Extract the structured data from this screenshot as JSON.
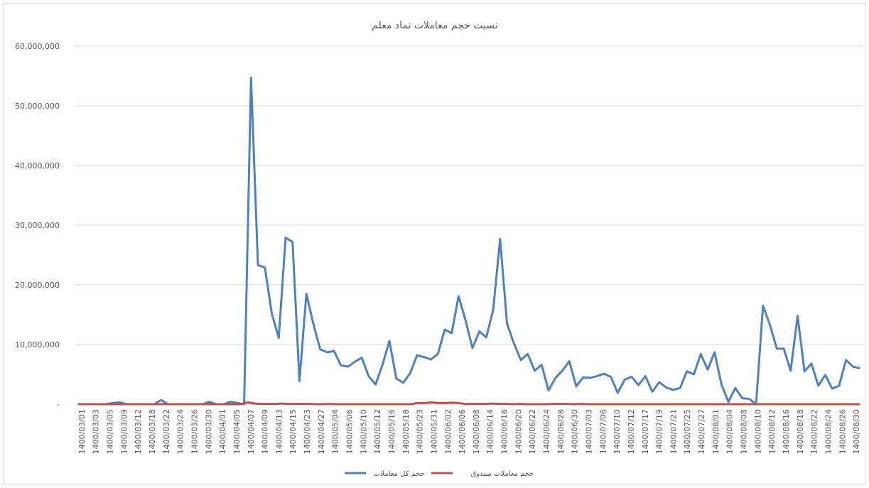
{
  "chart_data": {
    "type": "line",
    "title": "نسبت حجم معاملات نماد معلم",
    "xlabel": "",
    "ylabel": "",
    "ylim": [
      0,
      60000000
    ],
    "y_ticks": [
      "-",
      "10,000,000",
      "20,000,000",
      "30,000,000",
      "40,000,000",
      "50,000,000",
      "60,000,000"
    ],
    "y_tick_values": [
      0,
      10000000,
      20000000,
      30000000,
      40000000,
      50000000,
      60000000
    ],
    "grid": "horizontal",
    "legend_position": "bottom",
    "x_labels": [
      "1400/03/01",
      "1400/03/03",
      "1400/03/05",
      "1400/03/09",
      "1400/03/12",
      "1400/03/18",
      "1400/03/22",
      "1400/03/24",
      "1400/03/26",
      "1400/03/30",
      "1400/04/01",
      "1400/04/05",
      "1400/04/07",
      "1400/04/09",
      "1400/04/13",
      "1400/04/15",
      "1400/04/23",
      "1400/04/27",
      "1400/05/04",
      "1400/05/06",
      "1400/05/10",
      "1400/05/12",
      "1400/05/16",
      "1400/05/18",
      "1400/05/23",
      "1400/05/31",
      "1400/06/02",
      "1400/06/06",
      "1400/06/08",
      "1400/06/14",
      "1400/06/16",
      "1400/06/20",
      "1400/06/22",
      "1400/06/24",
      "1400/06/28",
      "1400/06/30",
      "1400/07/03",
      "1400/07/06",
      "1400/07/10",
      "1400/07/12",
      "1400/07/17",
      "1400/07/19",
      "1400/07/21",
      "1400/07/25",
      "1400/07/27",
      "1400/08/01",
      "1400/08/04",
      "1400/08/08",
      "1400/08/10",
      "1400/08/12",
      "1400/08/16",
      "1400/08/18",
      "1400/08/22",
      "1400/08/24",
      "1400/08/26",
      "1400/08/30"
    ],
    "series": [
      {
        "name": "حجم کل معاملات",
        "color": "#4f81bd",
        "values": [
          0,
          0,
          0,
          0,
          0,
          200000,
          300000,
          0,
          0,
          0,
          0,
          0,
          700000,
          0,
          0,
          0,
          0,
          0,
          0,
          400000,
          0,
          0,
          400000,
          200000,
          0,
          54700000,
          23300000,
          22900000,
          15200000,
          11100000,
          27900000,
          27200000,
          3900000,
          18500000,
          13500000,
          9200000,
          8700000,
          8900000,
          6500000,
          6300000,
          7100000,
          7800000,
          4700000,
          3300000,
          6600000,
          10600000,
          4300000,
          3600000,
          5200000,
          8200000,
          7900000,
          7500000,
          8400000,
          12500000,
          11900000,
          18100000,
          14100000,
          9400000,
          12200000,
          11200000,
          15800000,
          27700000,
          13500000,
          10200000,
          7400000,
          8400000,
          5600000,
          6600000,
          2300000,
          4400000,
          5600000,
          7200000,
          3000000,
          4500000,
          4400000,
          4700000,
          5100000,
          4600000,
          1900000,
          4100000,
          4600000,
          3200000,
          4700000,
          2100000,
          3700000,
          2800000,
          2400000,
          2700000,
          5500000,
          5000000,
          8400000,
          5800000,
          8700000,
          3300000,
          400000,
          2700000,
          1000000,
          900000,
          0,
          16500000,
          13300000,
          9300000,
          9300000,
          5600000,
          14800000,
          5500000,
          6800000,
          3100000,
          4900000,
          2600000,
          3100000,
          7400000,
          6300000,
          6000000
        ]
      },
      {
        "name": "حجم معاملات صندوق",
        "color": "#c0504d",
        "values": [
          0,
          0,
          0,
          0,
          0,
          0,
          0,
          0,
          0,
          0,
          0,
          0,
          0,
          0,
          0,
          0,
          0,
          0,
          0,
          0,
          0,
          0,
          0,
          0,
          0,
          300000,
          100000,
          50000,
          50000,
          50000,
          100000,
          50000,
          50000,
          50000,
          50000,
          0,
          0,
          50000,
          0,
          0,
          0,
          0,
          0,
          0,
          0,
          0,
          0,
          0,
          0,
          0,
          200000,
          200000,
          300000,
          200000,
          200000,
          250000,
          200000,
          0,
          50000,
          50000,
          50000,
          100000,
          50000,
          50000,
          0,
          50000,
          0,
          0,
          0,
          0,
          50000,
          50000,
          50000,
          0,
          50000,
          0,
          0,
          0,
          0,
          0,
          0,
          0,
          0,
          0,
          0,
          0,
          0,
          0,
          0,
          0,
          0,
          0,
          0,
          0,
          0,
          0,
          0,
          0,
          0,
          0,
          0,
          0,
          0,
          0,
          0,
          0,
          0,
          0,
          0,
          0,
          0,
          0,
          0,
          0,
          0,
          0
        ]
      }
    ]
  }
}
